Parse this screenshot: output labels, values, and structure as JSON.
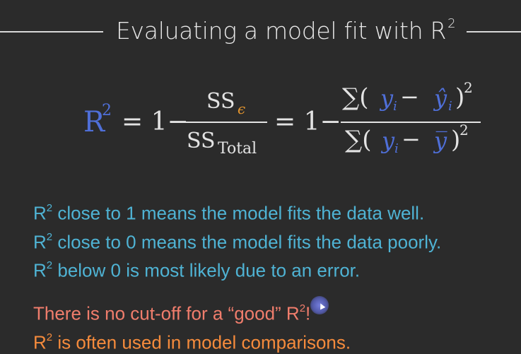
{
  "title": {
    "text": "Evaluating a model fit with R",
    "superscript": "2"
  },
  "formula": {
    "lhs": "R",
    "lhs_sup": "2",
    "eq1": "= 1−",
    "num1_main": "SS",
    "num1_sub": "ϵ",
    "den1_main": "SS",
    "den1_sub": "Total",
    "eq2": "= 1−",
    "num2_sum": "∑(",
    "num2_y": "y",
    "num2_i": "i",
    "num2_minus": " − ",
    "num2_yhat": "ŷ",
    "num2_i2": "i",
    "num2_close": ")",
    "num2_exp": "2",
    "den2_sum": "∑(",
    "den2_y": "y",
    "den2_i": "i",
    "den2_minus": " − ",
    "den2_ybar": "y̅",
    "den2_close": ")",
    "den2_exp": "2"
  },
  "points": [
    {
      "prefix": "R",
      "sup": "2",
      "text": " close to 1 means the model fits the data well."
    },
    {
      "prefix": "R",
      "sup": "2",
      "text": " close to 0 means the model fits the data poorly."
    },
    {
      "prefix": "R",
      "sup": "2",
      "text": " below 0 is most likely due to an error."
    }
  ],
  "notes": [
    {
      "text": "There is no cut-off for a “good” R",
      "sup": "2",
      "tail": "!"
    },
    {
      "prefix": "R",
      "sup": "2",
      "text": " is often used in model comparisons."
    }
  ],
  "colors": {
    "background": "#2b2b2b",
    "formula_blue": "#4f6fd8",
    "formula_orange": "#e3952e",
    "points": "#4fb3d4",
    "note1": "#f07d6c",
    "note2": "#f58b3c"
  },
  "icons": [
    "cursor-pointer-icon"
  ]
}
